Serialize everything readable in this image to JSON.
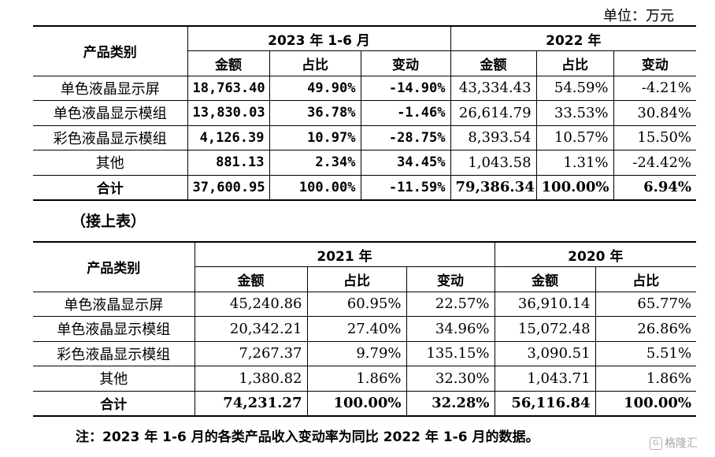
{
  "unit_label": "单位：万元",
  "table1": {
    "category_header": "产品类别",
    "group_headers": [
      "2023 年 1-6 月",
      "2022 年"
    ],
    "sub_headers": [
      "金额",
      "占比",
      "变动",
      "金额",
      "占比",
      "变动"
    ],
    "rows": [
      {
        "category": "单色液晶显示屏",
        "cells": [
          "18,763.40",
          "49.90%",
          "-14.90%",
          "43,334.43",
          "54.59%",
          "-4.21%"
        ]
      },
      {
        "category": "单色液晶显示模组",
        "cells": [
          "13,830.03",
          "36.78%",
          "-1.46%",
          "26,614.79",
          "33.53%",
          "30.84%"
        ]
      },
      {
        "category": "彩色液晶显示模组",
        "cells": [
          "4,126.39",
          "10.97%",
          "-28.75%",
          "8,393.54",
          "10.57%",
          "15.50%"
        ]
      },
      {
        "category": "其他",
        "cells": [
          "881.13",
          "2.34%",
          "34.45%",
          "1,043.58",
          "1.31%",
          "-24.42%"
        ]
      }
    ],
    "total": {
      "category": "合计",
      "cells": [
        "37,600.95",
        "100.00%",
        "-11.59%",
        "79,386.34",
        "100.00%",
        "6.94%"
      ]
    }
  },
  "continued_label": "（接上表）",
  "table2": {
    "category_header": "产品类别",
    "group_headers": [
      "2021 年",
      "2020 年"
    ],
    "sub_headers": [
      "金额",
      "占比",
      "变动",
      "金额",
      "占比"
    ],
    "rows": [
      {
        "category": "单色液晶显示屏",
        "cells": [
          "45,240.86",
          "60.95%",
          "22.57%",
          "36,910.14",
          "65.77%"
        ]
      },
      {
        "category": "单色液晶显示模组",
        "cells": [
          "20,342.21",
          "27.40%",
          "34.96%",
          "15,072.48",
          "26.86%"
        ]
      },
      {
        "category": "彩色液晶显示模组",
        "cells": [
          "7,267.37",
          "9.79%",
          "135.15%",
          "3,090.51",
          "5.51%"
        ]
      },
      {
        "category": "其他",
        "cells": [
          "1,380.82",
          "1.86%",
          "32.30%",
          "1,043.71",
          "1.86%"
        ]
      }
    ],
    "total": {
      "category": "合计",
      "cells": [
        "74,231.27",
        "100.00%",
        "32.28%",
        "56,116.84",
        "100.00%"
      ]
    }
  },
  "footnote": "注：2023 年 1-6 月的各类产品收入变动率为同比 2022 年 1-6 月的数据。",
  "watermark": {
    "logo_text": "G",
    "text": "格隆汇"
  }
}
